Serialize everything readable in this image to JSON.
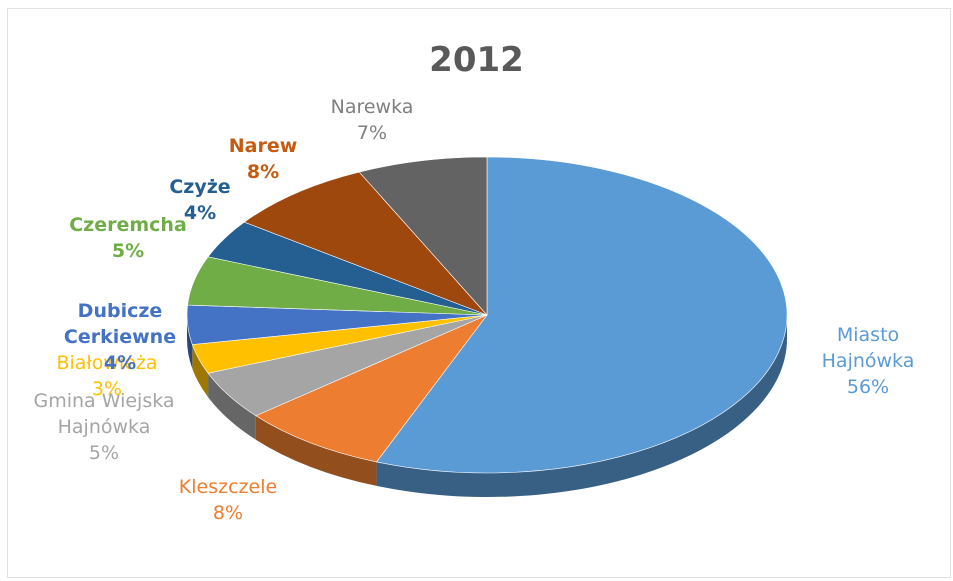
{
  "chart_data": {
    "type": "pie",
    "title": "2012",
    "slices": [
      {
        "label": "Miasto\nHajnówka",
        "pct_label": "56%",
        "value": 56,
        "color": "#5b9bd5"
      },
      {
        "label": "Kleszczele",
        "pct_label": "8%",
        "value": 8,
        "color": "#ed7d31"
      },
      {
        "label": "Gmina Wiejska\nHajnówka",
        "pct_label": "5%",
        "value": 5,
        "color": "#a5a5a5"
      },
      {
        "label": "Białowieża",
        "pct_label": "3%",
        "value": 3,
        "color": "#ffc000"
      },
      {
        "label": "Dubicze\nCerkiewne",
        "pct_label": "4%",
        "value": 4,
        "color": "#4472c4"
      },
      {
        "label": "Czeremcha",
        "pct_label": "5%",
        "value": 5,
        "color": "#70ad47"
      },
      {
        "label": "Czyże",
        "pct_label": "4%",
        "value": 4,
        "color": "#255e91"
      },
      {
        "label": "Narew",
        "pct_label": "8%",
        "value": 8,
        "color": "#9e480e"
      },
      {
        "label": "Narewka",
        "pct_label": "7%",
        "value": 7,
        "color": "#636363"
      }
    ]
  }
}
